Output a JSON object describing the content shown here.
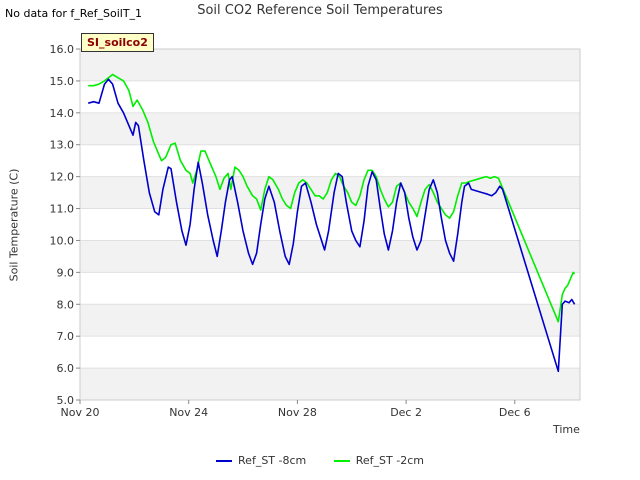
{
  "header": {
    "no_data": "No data for f_Ref_SoilT_1",
    "title": "Soil CO2 Reference Soil Temperatures",
    "tag": "SI_soilco2"
  },
  "chart_data": {
    "type": "line",
    "title": "Soil CO2 Reference Soil Temperatures",
    "xlabel": "Time",
    "ylabel": "Soil Temperature (C)",
    "ylim": [
      5.0,
      16.0
    ],
    "xlim": [
      0,
      18.4
    ],
    "x_ticks": [
      {
        "x": 0,
        "label": "Nov 20"
      },
      {
        "x": 4,
        "label": "Nov 24"
      },
      {
        "x": 8,
        "label": "Nov 28"
      },
      {
        "x": 12,
        "label": "Dec 2"
      },
      {
        "x": 16,
        "label": "Dec 6"
      }
    ],
    "y_ticks": [
      {
        "y": 5.0,
        "label": "5.0"
      },
      {
        "y": 6.0,
        "label": "6.0"
      },
      {
        "y": 7.0,
        "label": "7.0"
      },
      {
        "y": 8.0,
        "label": "8.0"
      },
      {
        "y": 9.0,
        "label": "9.0"
      },
      {
        "y": 10.0,
        "label": "10.0"
      },
      {
        "y": 11.0,
        "label": "11.0"
      },
      {
        "y": 12.0,
        "label": "12.0"
      },
      {
        "y": 13.0,
        "label": "13.0"
      },
      {
        "y": 14.0,
        "label": "14.0"
      },
      {
        "y": 15.0,
        "label": "15.0"
      },
      {
        "y": 16.0,
        "label": "16.0"
      }
    ],
    "grid": "horizontal bands",
    "legend_position": "bottom",
    "series": [
      {
        "name": "Ref_ST -8cm",
        "color": "#0000cc",
        "points": [
          [
            0.3,
            14.3
          ],
          [
            0.5,
            14.35
          ],
          [
            0.7,
            14.3
          ],
          [
            0.9,
            14.9
          ],
          [
            1.05,
            15.05
          ],
          [
            1.2,
            14.9
          ],
          [
            1.4,
            14.3
          ],
          [
            1.6,
            14.0
          ],
          [
            1.8,
            13.6
          ],
          [
            1.95,
            13.3
          ],
          [
            2.05,
            13.7
          ],
          [
            2.15,
            13.6
          ],
          [
            2.35,
            12.5
          ],
          [
            2.55,
            11.5
          ],
          [
            2.75,
            10.9
          ],
          [
            2.9,
            10.8
          ],
          [
            3.05,
            11.6
          ],
          [
            3.25,
            12.3
          ],
          [
            3.35,
            12.25
          ],
          [
            3.55,
            11.2
          ],
          [
            3.75,
            10.3
          ],
          [
            3.9,
            9.85
          ],
          [
            4.05,
            10.5
          ],
          [
            4.2,
            11.6
          ],
          [
            4.35,
            12.45
          ],
          [
            4.5,
            11.8
          ],
          [
            4.7,
            10.8
          ],
          [
            4.9,
            10.0
          ],
          [
            5.05,
            9.5
          ],
          [
            5.2,
            10.3
          ],
          [
            5.35,
            11.2
          ],
          [
            5.5,
            11.9
          ],
          [
            5.6,
            12.0
          ],
          [
            5.8,
            11.2
          ],
          [
            6.0,
            10.3
          ],
          [
            6.2,
            9.6
          ],
          [
            6.35,
            9.25
          ],
          [
            6.5,
            9.6
          ],
          [
            6.65,
            10.5
          ],
          [
            6.8,
            11.3
          ],
          [
            6.95,
            11.7
          ],
          [
            7.15,
            11.2
          ],
          [
            7.35,
            10.3
          ],
          [
            7.55,
            9.5
          ],
          [
            7.7,
            9.25
          ],
          [
            7.85,
            9.9
          ],
          [
            8.0,
            10.9
          ],
          [
            8.15,
            11.7
          ],
          [
            8.3,
            11.8
          ],
          [
            8.5,
            11.2
          ],
          [
            8.7,
            10.5
          ],
          [
            8.85,
            10.1
          ],
          [
            9.0,
            9.7
          ],
          [
            9.15,
            10.3
          ],
          [
            9.35,
            11.5
          ],
          [
            9.5,
            12.1
          ],
          [
            9.65,
            12.0
          ],
          [
            9.8,
            11.2
          ],
          [
            10.0,
            10.3
          ],
          [
            10.15,
            10.0
          ],
          [
            10.3,
            9.8
          ],
          [
            10.45,
            10.6
          ],
          [
            10.6,
            11.7
          ],
          [
            10.75,
            12.15
          ],
          [
            10.9,
            11.9
          ],
          [
            11.05,
            11.0
          ],
          [
            11.2,
            10.2
          ],
          [
            11.35,
            9.7
          ],
          [
            11.5,
            10.3
          ],
          [
            11.65,
            11.2
          ],
          [
            11.8,
            11.8
          ],
          [
            11.95,
            11.5
          ],
          [
            12.1,
            10.7
          ],
          [
            12.25,
            10.1
          ],
          [
            12.4,
            9.7
          ],
          [
            12.55,
            10.0
          ],
          [
            12.7,
            10.8
          ],
          [
            12.85,
            11.6
          ],
          [
            13.0,
            11.9
          ],
          [
            13.15,
            11.5
          ],
          [
            13.3,
            10.7
          ],
          [
            13.45,
            10.0
          ],
          [
            13.6,
            9.6
          ],
          [
            13.75,
            9.35
          ],
          [
            13.9,
            10.2
          ],
          [
            14.05,
            11.2
          ],
          [
            14.15,
            11.7
          ],
          [
            14.3,
            11.8
          ],
          [
            14.4,
            11.6
          ],
          [
            14.6,
            11.55
          ],
          [
            14.8,
            11.5
          ],
          [
            15.0,
            11.45
          ],
          [
            15.15,
            11.4
          ],
          [
            15.3,
            11.5
          ],
          [
            15.45,
            11.7
          ],
          [
            15.55,
            11.6
          ],
          [
            17.6,
            5.9
          ],
          [
            17.75,
            8.0
          ],
          [
            17.85,
            8.1
          ],
          [
            18.0,
            8.05
          ],
          [
            18.1,
            8.15
          ],
          [
            18.2,
            8.0
          ]
        ]
      },
      {
        "name": "Ref_ST -2cm",
        "color": "#00ee00",
        "points": [
          [
            0.3,
            14.85
          ],
          [
            0.5,
            14.85
          ],
          [
            0.7,
            14.9
          ],
          [
            0.9,
            15.0
          ],
          [
            1.05,
            15.1
          ],
          [
            1.2,
            15.2
          ],
          [
            1.4,
            15.1
          ],
          [
            1.6,
            15.0
          ],
          [
            1.8,
            14.7
          ],
          [
            1.95,
            14.2
          ],
          [
            2.1,
            14.4
          ],
          [
            2.3,
            14.1
          ],
          [
            2.5,
            13.7
          ],
          [
            2.7,
            13.1
          ],
          [
            2.85,
            12.8
          ],
          [
            3.0,
            12.5
          ],
          [
            3.15,
            12.6
          ],
          [
            3.35,
            13.0
          ],
          [
            3.5,
            13.05
          ],
          [
            3.7,
            12.5
          ],
          [
            3.9,
            12.2
          ],
          [
            4.05,
            12.1
          ],
          [
            4.15,
            11.8
          ],
          [
            4.3,
            12.2
          ],
          [
            4.45,
            12.8
          ],
          [
            4.6,
            12.8
          ],
          [
            4.8,
            12.4
          ],
          [
            5.0,
            12.0
          ],
          [
            5.15,
            11.6
          ],
          [
            5.3,
            11.95
          ],
          [
            5.45,
            12.1
          ],
          [
            5.55,
            11.6
          ],
          [
            5.7,
            12.3
          ],
          [
            5.85,
            12.2
          ],
          [
            6.0,
            12.0
          ],
          [
            6.15,
            11.7
          ],
          [
            6.35,
            11.4
          ],
          [
            6.5,
            11.3
          ],
          [
            6.65,
            10.95
          ],
          [
            6.8,
            11.6
          ],
          [
            6.95,
            12.0
          ],
          [
            7.1,
            11.9
          ],
          [
            7.3,
            11.6
          ],
          [
            7.45,
            11.3
          ],
          [
            7.6,
            11.1
          ],
          [
            7.75,
            11.0
          ],
          [
            7.9,
            11.5
          ],
          [
            8.05,
            11.8
          ],
          [
            8.2,
            11.9
          ],
          [
            8.35,
            11.8
          ],
          [
            8.5,
            11.6
          ],
          [
            8.65,
            11.4
          ],
          [
            8.8,
            11.4
          ],
          [
            8.95,
            11.3
          ],
          [
            9.1,
            11.5
          ],
          [
            9.25,
            11.9
          ],
          [
            9.4,
            12.1
          ],
          [
            9.55,
            12.0
          ],
          [
            9.7,
            11.7
          ],
          [
            9.85,
            11.5
          ],
          [
            10.0,
            11.2
          ],
          [
            10.15,
            11.1
          ],
          [
            10.3,
            11.4
          ],
          [
            10.45,
            11.9
          ],
          [
            10.6,
            12.2
          ],
          [
            10.75,
            12.2
          ],
          [
            10.9,
            12.0
          ],
          [
            11.05,
            11.6
          ],
          [
            11.2,
            11.3
          ],
          [
            11.35,
            11.05
          ],
          [
            11.5,
            11.2
          ],
          [
            11.65,
            11.7
          ],
          [
            11.8,
            11.8
          ],
          [
            11.95,
            11.5
          ],
          [
            12.1,
            11.2
          ],
          [
            12.25,
            11.0
          ],
          [
            12.4,
            10.75
          ],
          [
            12.55,
            11.2
          ],
          [
            12.7,
            11.6
          ],
          [
            12.85,
            11.75
          ],
          [
            13.0,
            11.5
          ],
          [
            13.15,
            11.2
          ],
          [
            13.3,
            11.0
          ],
          [
            13.45,
            10.8
          ],
          [
            13.6,
            10.7
          ],
          [
            13.75,
            10.9
          ],
          [
            13.9,
            11.4
          ],
          [
            14.05,
            11.8
          ],
          [
            14.2,
            11.8
          ],
          [
            14.35,
            11.85
          ],
          [
            14.55,
            11.9
          ],
          [
            14.75,
            11.95
          ],
          [
            14.95,
            12.0
          ],
          [
            15.1,
            11.95
          ],
          [
            15.25,
            12.0
          ],
          [
            15.4,
            11.95
          ],
          [
            17.6,
            7.45
          ],
          [
            17.75,
            8.3
          ],
          [
            17.85,
            8.5
          ],
          [
            17.95,
            8.6
          ],
          [
            18.05,
            8.8
          ],
          [
            18.15,
            9.0
          ],
          [
            18.2,
            8.95
          ]
        ]
      }
    ]
  }
}
